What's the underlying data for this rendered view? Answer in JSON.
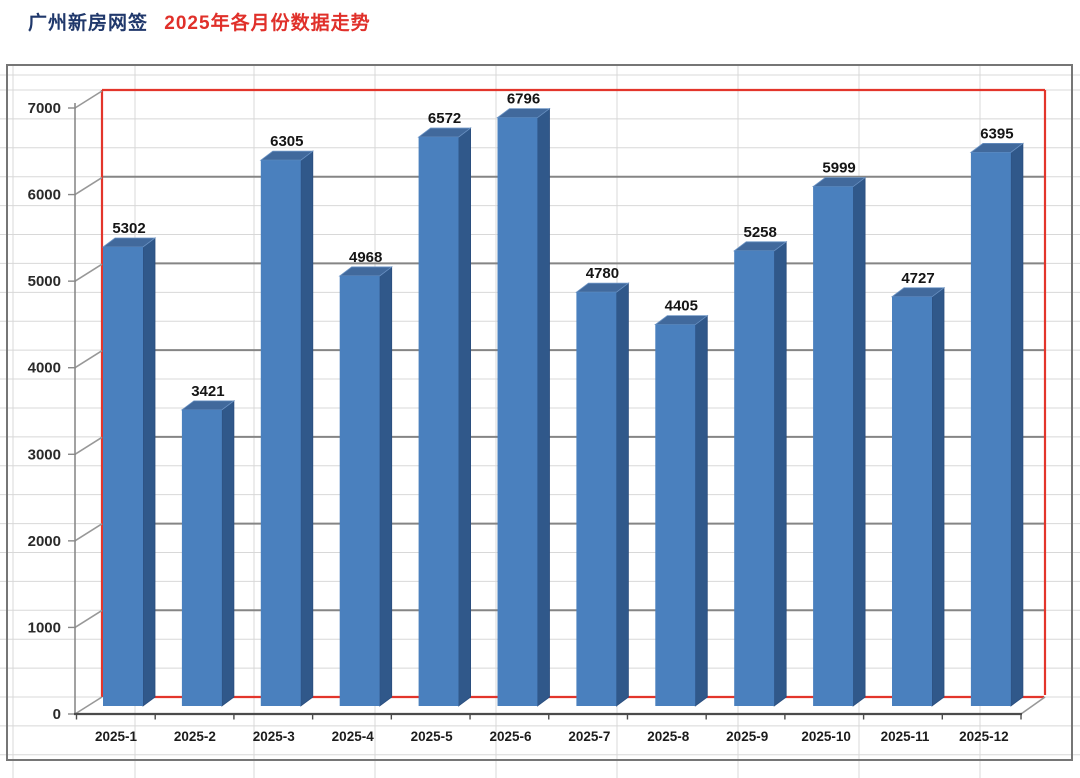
{
  "page_title": {
    "prefix": "广州新房网签",
    "suffix": "2025年各月份数据走势"
  },
  "chart_data": {
    "type": "bar",
    "style": "3d-column",
    "title": "广州新房网签 2025年各月份数据走势",
    "categories": [
      "2025-1",
      "2025-2",
      "2025-3",
      "2025-4",
      "2025-5",
      "2025-6",
      "2025-7",
      "2025-8",
      "2025-9",
      "2025-10",
      "2025-11",
      "2025-12"
    ],
    "values": [
      5302,
      3421,
      6305,
      4968,
      6572,
      6796,
      4780,
      4405,
      5258,
      5999,
      4727,
      6395
    ],
    "data_labels": [
      "5302",
      "3421",
      "6305",
      "4968",
      "6572",
      "6796",
      "4780",
      "4405",
      "5258",
      "5999",
      "4727",
      "6395"
    ],
    "xlabel": "",
    "ylabel": "",
    "ylim": [
      0,
      7000
    ],
    "major_unit": 1000,
    "y_tick_labels": [
      "0",
      "1000",
      "2000",
      "3000",
      "4000",
      "5000",
      "6000",
      "7000"
    ],
    "legend": "none",
    "grid": "major horizontal gridlines + light spreadsheet grid",
    "colors": {
      "bar_front": "#4a80be",
      "bar_top": "#41699c",
      "bar_side": "#30588a",
      "bar_edge": "#2a4d7d",
      "plot_border": "#e3352b",
      "gridline_major": "#858585",
      "sheet_grid": "#d8d8d8",
      "axis_dark": "#4b4b4b",
      "axis_gray": "#8a8a8a",
      "label_text": "#1c1c1c",
      "tick_text": "#2a2a2a",
      "chart_frame": "#767676"
    }
  }
}
